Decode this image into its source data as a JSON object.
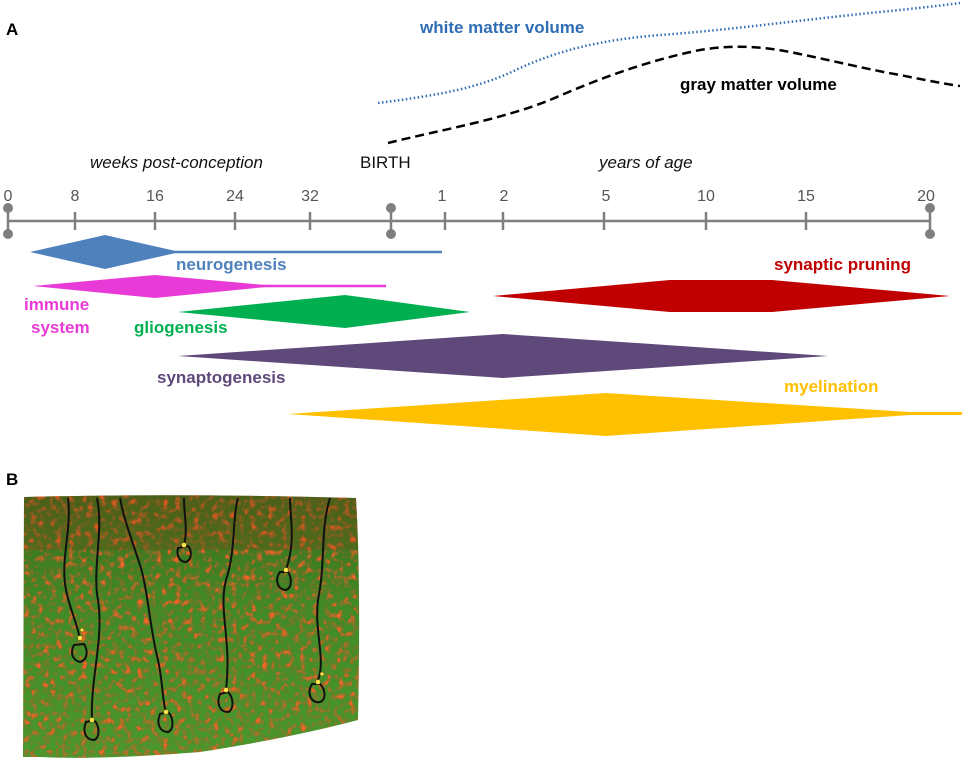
{
  "panels": {
    "a_label": "A",
    "b_label": "B"
  },
  "timeline": {
    "prenatal_caption": "weeks post-conception",
    "birth_label": "BIRTH",
    "postnatal_caption": "years of age",
    "prenatal_ticks": [
      "0",
      "8",
      "16",
      "24",
      "32"
    ],
    "postnatal_ticks": [
      "1",
      "2",
      "5",
      "10",
      "15",
      "20"
    ]
  },
  "volume_curves": {
    "white": {
      "label": "white matter volume",
      "color": "#2f6db5"
    },
    "gray": {
      "label": "gray matter volume",
      "color": "#000000"
    }
  },
  "processes": {
    "neurogenesis": {
      "label": "neurogenesis",
      "color": "#4f81bd"
    },
    "immune": {
      "label_line1": "immune",
      "label_line2": "system",
      "color": "#e83ad6"
    },
    "gliogenesis": {
      "label": "gliogenesis",
      "color": "#00b050"
    },
    "synaptogenesis": {
      "label": "synaptogenesis",
      "color": "#5f497a"
    },
    "pruning": {
      "label": "synaptic pruning",
      "color": "#c00000"
    },
    "myelination": {
      "label": "myelination",
      "color": "#ffc000"
    }
  }
}
